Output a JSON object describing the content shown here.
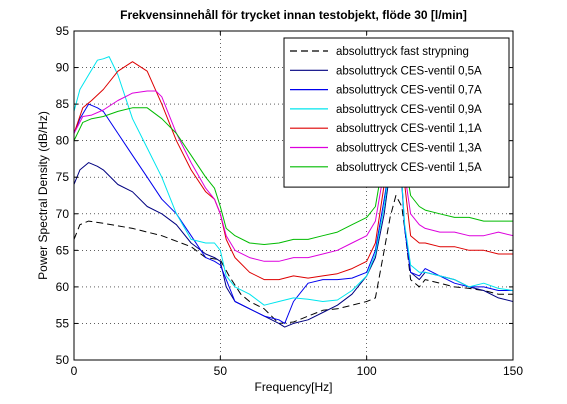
{
  "chart_data": {
    "type": "line",
    "title": "Frekvensinnehåll för trycket innan testobjekt, flöde 30 [l/min]",
    "xlabel": "Frequency[Hz]",
    "ylabel": "Power Spectral Density (dB/Hz)",
    "xlim": [
      0,
      150
    ],
    "ylim": [
      50,
      95
    ],
    "xticks": [
      0,
      50,
      100,
      150
    ],
    "yticks": [
      50,
      55,
      60,
      65,
      70,
      75,
      80,
      85,
      90,
      95
    ],
    "grid": true,
    "legend_position": "top-right",
    "series": [
      {
        "name": "absoluttryck fast strypning",
        "color": "#000000",
        "dash": "7,4",
        "x": [
          0,
          2,
          5,
          10,
          20,
          30,
          40,
          45,
          50,
          53,
          57,
          60,
          65,
          70,
          75,
          80,
          85,
          90,
          95,
          100,
          103,
          106,
          108,
          110,
          112,
          113,
          115,
          118,
          120,
          125,
          130,
          135,
          140,
          145,
          150
        ],
        "y": [
          66.5,
          68.5,
          69,
          68.7,
          68,
          67,
          65.5,
          64,
          63.7,
          61.5,
          59,
          58,
          57,
          55,
          55.2,
          56,
          56.8,
          57,
          57.5,
          58,
          58.5,
          65,
          69.5,
          72.5,
          71,
          68,
          61,
          60,
          61,
          60.5,
          60,
          59.8,
          59.5,
          59,
          59
        ]
      },
      {
        "name": "absoluttryck CES-ventil 0,5A",
        "color": "#000080",
        "dash": "",
        "x": [
          0,
          2,
          5,
          8,
          10,
          15,
          20,
          25,
          30,
          35,
          40,
          45,
          48,
          50,
          52,
          55,
          60,
          65,
          70,
          72,
          75,
          80,
          85,
          90,
          95,
          100,
          103,
          106,
          108,
          110,
          112,
          113,
          115,
          118,
          120,
          125,
          130,
          135,
          140,
          145,
          150
        ],
        "y": [
          74,
          76,
          77,
          76.5,
          76,
          74,
          73,
          71,
          70,
          68.5,
          66,
          64.5,
          64,
          63.5,
          60,
          58,
          57,
          56,
          55,
          54.5,
          55,
          55.5,
          56.5,
          57.5,
          59,
          61.5,
          64,
          70,
          76,
          77,
          74.5,
          68,
          62,
          61,
          62,
          61.5,
          61,
          60,
          59.5,
          58.5,
          58
        ]
      },
      {
        "name": "absoluttryck CES-ventil 0,7A",
        "color": "#0000ee",
        "dash": "",
        "x": [
          0,
          2,
          5,
          8,
          10,
          15,
          20,
          25,
          30,
          35,
          40,
          45,
          48,
          50,
          52,
          55,
          60,
          65,
          70,
          72,
          75,
          80,
          85,
          90,
          95,
          100,
          103,
          106,
          108,
          110,
          112,
          113,
          115,
          118,
          120,
          125,
          130,
          135,
          140,
          145,
          150
        ],
        "y": [
          81,
          83,
          85,
          84.5,
          84,
          81,
          78,
          75,
          72,
          70,
          67,
          64,
          63.5,
          63,
          61,
          58,
          57,
          56,
          55.5,
          55,
          58,
          60.5,
          61,
          61,
          61.2,
          62,
          65,
          72,
          77,
          78,
          74,
          68,
          62,
          61.5,
          62.5,
          61.5,
          60.5,
          60,
          60,
          59.5,
          59.5
        ]
      },
      {
        "name": "absoluttryck CES-ventil 0,9A",
        "color": "#00e5ee",
        "dash": "",
        "x": [
          0,
          2,
          5,
          8,
          10,
          12,
          15,
          20,
          25,
          30,
          35,
          40,
          45,
          48,
          50,
          52,
          55,
          60,
          65,
          70,
          75,
          80,
          85,
          90,
          95,
          100,
          103,
          106,
          108,
          110,
          112,
          113,
          115,
          118,
          120,
          125,
          130,
          135,
          140,
          145,
          150
        ],
        "y": [
          84,
          87,
          89,
          91,
          91.2,
          91.5,
          89,
          83,
          79,
          75,
          70,
          66.5,
          66,
          66,
          65,
          61.5,
          60,
          59,
          57.5,
          58,
          58.5,
          58.3,
          58,
          58.2,
          59.5,
          61.5,
          64.5,
          71,
          77,
          78,
          74.5,
          68.5,
          63,
          62,
          62,
          61.5,
          61,
          60,
          60.5,
          59.8,
          59.5
        ]
      },
      {
        "name": "absoluttryck CES-ventil 1,1A",
        "color": "#dd0000",
        "dash": "",
        "x": [
          0,
          3,
          6,
          10,
          15,
          20,
          25,
          30,
          35,
          40,
          45,
          48,
          50,
          52,
          55,
          60,
          65,
          70,
          75,
          80,
          85,
          90,
          95,
          100,
          103,
          106,
          108,
          110,
          112,
          113,
          115,
          118,
          120,
          125,
          130,
          135,
          140,
          145,
          150
        ],
        "y": [
          81,
          84.5,
          85.5,
          87,
          89.5,
          90.8,
          89.5,
          85,
          80,
          76,
          73,
          72,
          70,
          66.5,
          64,
          62,
          61,
          61,
          61.5,
          61.2,
          61.5,
          61.8,
          62.5,
          63.5,
          66,
          74,
          80,
          82,
          79,
          74,
          67,
          66,
          66,
          65.5,
          65.5,
          65,
          65,
          64.5,
          64.5
        ]
      },
      {
        "name": "absoluttryck CES-ventil 1,3A",
        "color": "#dd00dd",
        "dash": "",
        "x": [
          0,
          3,
          6,
          10,
          15,
          20,
          25,
          28,
          30,
          35,
          40,
          45,
          48,
          50,
          52,
          55,
          60,
          65,
          70,
          75,
          80,
          85,
          90,
          95,
          100,
          103,
          106,
          108,
          110,
          112,
          113,
          115,
          118,
          120,
          125,
          130,
          135,
          140,
          145,
          150
        ],
        "y": [
          81,
          83.3,
          83.5,
          84.2,
          85.5,
          86.5,
          86.8,
          86.8,
          86,
          81,
          77,
          73.5,
          72,
          70,
          67,
          65,
          64,
          63.5,
          63.5,
          64,
          64,
          64.5,
          65,
          66,
          67,
          69,
          76,
          81,
          83,
          80,
          75.5,
          70,
          68.5,
          68,
          67.5,
          67.5,
          67,
          67,
          67.5,
          67
        ]
      },
      {
        "name": "absoluttryck CES-ventil 1,5A",
        "color": "#00bb00",
        "dash": "",
        "x": [
          0,
          3,
          6,
          10,
          15,
          20,
          25,
          30,
          35,
          40,
          45,
          48,
          50,
          52,
          55,
          60,
          65,
          70,
          75,
          80,
          85,
          90,
          95,
          100,
          103,
          106,
          108,
          110,
          112,
          113,
          115,
          118,
          120,
          125,
          130,
          135,
          140,
          145,
          150
        ],
        "y": [
          80,
          82.5,
          83,
          83.3,
          84,
          84.5,
          84.5,
          83,
          81,
          78,
          75,
          73.5,
          71,
          68,
          67,
          66,
          65.8,
          66,
          66.5,
          66.5,
          67,
          67.5,
          68.5,
          69.5,
          71,
          78,
          83,
          85,
          83,
          77.5,
          72.5,
          71,
          70.5,
          70,
          69.5,
          69.5,
          69,
          69,
          69
        ]
      }
    ]
  }
}
